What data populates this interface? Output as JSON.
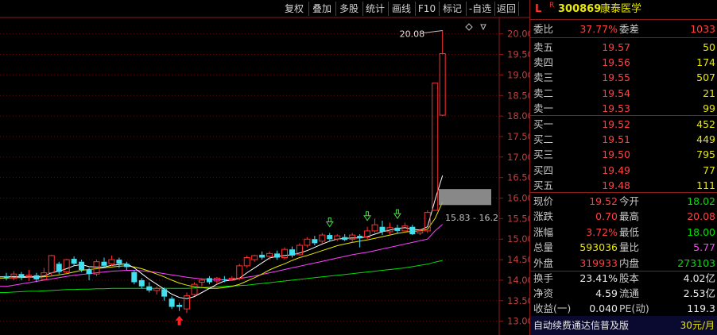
{
  "toolbar": {
    "buttons": [
      "复权",
      "叠加",
      "多股",
      "统计",
      "画线",
      "F10",
      "标记",
      "-自选",
      "返回"
    ]
  },
  "header": {
    "flag": "L",
    "sup": "R",
    "code": "300869",
    "name": "康泰医学"
  },
  "order_ratio": {
    "label1": "委比",
    "value1": "37.77%",
    "label2": "委差",
    "value2": "1033"
  },
  "asks": [
    {
      "label": "卖五",
      "price": "19.57",
      "vol": "50"
    },
    {
      "label": "卖四",
      "price": "19.56",
      "vol": "174"
    },
    {
      "label": "卖三",
      "price": "19.55",
      "vol": "507"
    },
    {
      "label": "卖二",
      "price": "19.54",
      "vol": "21"
    },
    {
      "label": "卖一",
      "price": "19.53",
      "vol": "99"
    }
  ],
  "bids": [
    {
      "label": "买一",
      "price": "19.52",
      "vol": "452"
    },
    {
      "label": "买二",
      "price": "19.51",
      "vol": "449"
    },
    {
      "label": "买三",
      "price": "19.50",
      "vol": "795"
    },
    {
      "label": "买四",
      "price": "19.49",
      "vol": "77"
    },
    {
      "label": "买五",
      "price": "19.48",
      "vol": "111"
    }
  ],
  "quote": [
    {
      "l1": "现价",
      "v1": "19.52",
      "l2": "今开",
      "v2": "18.02"
    },
    {
      "l1": "涨跌",
      "v1": "0.70",
      "l2": "最高",
      "v2": "20.08"
    },
    {
      "l1": "涨幅",
      "v1": "3.72%",
      "l2": "最低",
      "v2": "18.00"
    },
    {
      "l1": "总量",
      "v1": "593036",
      "l2": "量比",
      "v2": "5.77"
    },
    {
      "l1": "外盘",
      "v1": "319933",
      "l2": "内盘",
      "v2": "273103"
    }
  ],
  "stats": [
    {
      "l1": "换手",
      "v1": "23.41%",
      "l2": "股本",
      "v2": "4.02亿"
    },
    {
      "l1": "净资",
      "v1": "4.59",
      "l2": "流通",
      "v2": "2.53亿"
    },
    {
      "l1": "收益(一)",
      "v1": "0.040",
      "l2": "PE(动)",
      "v2": "119.3"
    }
  ],
  "footer": {
    "text": "自动续费通达信普及版",
    "price": "30元/月"
  },
  "colors": {
    "up": "#ff3030",
    "down": "#40e0f0",
    "ma5": "#ffffff",
    "ma10": "#e8e800",
    "ma20": "#ff40ff",
    "ma60": "#00e000",
    "frame": "#8a1a1a"
  },
  "chart_data": {
    "type": "candlestick",
    "ylim": [
      12.8,
      20.4
    ],
    "y_ticks": [
      "20.00",
      "19.50",
      "19.00",
      "18.50",
      "18.00",
      "17.50",
      "17.00",
      "16.50",
      "16.00",
      "15.50",
      "15.00",
      "14.50",
      "14.00",
      "13.50",
      "13.00"
    ],
    "annotations": {
      "high_label": "20.08",
      "range_label": "15.83 - 16.2"
    },
    "candles": [
      {
        "o": 14.1,
        "c": 14.05,
        "h": 14.18,
        "l": 14.0
      },
      {
        "o": 14.05,
        "c": 14.15,
        "h": 14.22,
        "l": 14.0
      },
      {
        "o": 14.15,
        "c": 14.08,
        "h": 14.2,
        "l": 14.0
      },
      {
        "o": 14.08,
        "c": 14.12,
        "h": 14.25,
        "l": 13.98
      },
      {
        "o": 14.12,
        "c": 14.02,
        "h": 14.18,
        "l": 13.95
      },
      {
        "o": 14.02,
        "c": 14.18,
        "h": 14.3,
        "l": 14.0
      },
      {
        "o": 14.18,
        "c": 14.6,
        "h": 14.62,
        "l": 14.1
      },
      {
        "o": 14.4,
        "c": 14.2,
        "h": 14.45,
        "l": 14.15
      },
      {
        "o": 14.2,
        "c": 14.5,
        "h": 14.52,
        "l": 14.15
      },
      {
        "o": 14.52,
        "c": 14.4,
        "h": 14.58,
        "l": 14.35
      },
      {
        "o": 14.45,
        "c": 14.25,
        "h": 14.5,
        "l": 14.2
      },
      {
        "o": 14.25,
        "c": 14.15,
        "h": 14.3,
        "l": 14.0
      },
      {
        "o": 14.15,
        "c": 14.45,
        "h": 14.5,
        "l": 14.1
      },
      {
        "o": 14.45,
        "c": 14.35,
        "h": 14.55,
        "l": 14.3
      },
      {
        "o": 14.4,
        "c": 14.5,
        "h": 14.6,
        "l": 14.35
      },
      {
        "o": 14.5,
        "c": 14.4,
        "h": 14.55,
        "l": 14.3
      },
      {
        "o": 14.4,
        "c": 14.32,
        "h": 14.45,
        "l": 14.25
      },
      {
        "o": 14.2,
        "c": 13.95,
        "h": 14.25,
        "l": 13.9
      },
      {
        "o": 14.0,
        "c": 13.85,
        "h": 14.05,
        "l": 13.8
      },
      {
        "o": 13.85,
        "c": 13.75,
        "h": 13.95,
        "l": 13.7
      },
      {
        "o": 13.75,
        "c": 13.8,
        "h": 13.85,
        "l": 13.65
      },
      {
        "o": 13.78,
        "c": 13.6,
        "h": 13.82,
        "l": 13.5
      },
      {
        "o": 13.55,
        "c": 13.35,
        "h": 13.6,
        "l": 13.3
      },
      {
        "o": 13.4,
        "c": 13.35,
        "h": 13.45,
        "l": 13.25
      },
      {
        "o": 13.3,
        "c": 13.62,
        "h": 13.7,
        "l": 13.2
      },
      {
        "o": 13.65,
        "c": 13.9,
        "h": 13.95,
        "l": 13.62
      },
      {
        "o": 13.95,
        "c": 14.0,
        "h": 14.05,
        "l": 13.85
      },
      {
        "o": 14.05,
        "c": 13.95,
        "h": 14.1,
        "l": 13.9
      },
      {
        "o": 13.98,
        "c": 14.05,
        "h": 14.08,
        "l": 13.9
      },
      {
        "o": 14.02,
        "c": 14.0,
        "h": 14.1,
        "l": 13.95
      },
      {
        "o": 14.0,
        "c": 14.05,
        "h": 14.1,
        "l": 13.98
      },
      {
        "o": 14.05,
        "c": 14.35,
        "h": 14.4,
        "l": 14.0
      },
      {
        "o": 14.35,
        "c": 14.55,
        "h": 14.6,
        "l": 14.3
      },
      {
        "o": 14.5,
        "c": 14.6,
        "h": 14.62,
        "l": 14.45
      },
      {
        "o": 14.62,
        "c": 14.55,
        "h": 14.7,
        "l": 14.5
      },
      {
        "o": 14.58,
        "c": 14.65,
        "h": 14.7,
        "l": 14.5
      },
      {
        "o": 14.65,
        "c": 14.55,
        "h": 14.72,
        "l": 14.5
      },
      {
        "o": 14.55,
        "c": 14.75,
        "h": 14.8,
        "l": 14.5
      },
      {
        "o": 14.75,
        "c": 14.6,
        "h": 14.82,
        "l": 14.55
      },
      {
        "o": 14.62,
        "c": 14.85,
        "h": 14.9,
        "l": 14.6
      },
      {
        "o": 14.85,
        "c": 15.0,
        "h": 15.05,
        "l": 14.8
      },
      {
        "o": 15.0,
        "c": 14.9,
        "h": 15.08,
        "l": 14.85
      },
      {
        "o": 14.95,
        "c": 15.1,
        "h": 15.15,
        "l": 14.9
      },
      {
        "o": 15.1,
        "c": 15.0,
        "h": 15.15,
        "l": 14.95
      },
      {
        "o": 15.0,
        "c": 15.08,
        "h": 15.12,
        "l": 14.95
      },
      {
        "o": 15.05,
        "c": 14.98,
        "h": 15.12,
        "l": 14.95
      },
      {
        "o": 15.0,
        "c": 15.1,
        "h": 15.15,
        "l": 14.92
      },
      {
        "o": 15.08,
        "c": 15.02,
        "h": 15.12,
        "l": 14.8
      },
      {
        "o": 15.05,
        "c": 15.2,
        "h": 15.3,
        "l": 15.0
      },
      {
        "o": 15.2,
        "c": 15.35,
        "h": 15.5,
        "l": 15.15
      },
      {
        "o": 15.3,
        "c": 15.18,
        "h": 15.45,
        "l": 15.1
      },
      {
        "o": 15.18,
        "c": 15.28,
        "h": 15.4,
        "l": 15.1
      },
      {
        "o": 15.28,
        "c": 15.2,
        "h": 15.35,
        "l": 15.15
      },
      {
        "o": 15.2,
        "c": 15.32,
        "h": 15.4,
        "l": 15.15
      },
      {
        "o": 15.3,
        "c": 15.12,
        "h": 15.35,
        "l": 15.1
      },
      {
        "o": 15.15,
        "c": 15.2,
        "h": 15.25,
        "l": 15.1
      },
      {
        "o": 15.2,
        "c": 15.65,
        "h": 15.7,
        "l": 15.15
      },
      {
        "o": 15.7,
        "c": 18.8,
        "h": 18.8,
        "l": 15.7
      },
      {
        "o": 18.02,
        "c": 19.52,
        "h": 20.08,
        "l": 18.0
      }
    ],
    "ma5": [
      14.08,
      14.09,
      14.08,
      14.09,
      14.08,
      14.1,
      14.18,
      14.22,
      14.28,
      14.35,
      14.38,
      14.33,
      14.32,
      14.32,
      14.36,
      14.38,
      14.4,
      14.3,
      14.16,
      14.02,
      13.9,
      13.78,
      13.66,
      13.58,
      13.55,
      13.6,
      13.7,
      13.8,
      13.9,
      13.98,
      14.0,
      14.05,
      14.18,
      14.3,
      14.42,
      14.54,
      14.58,
      14.6,
      14.62,
      14.66,
      14.72,
      14.8,
      14.88,
      14.95,
      15.0,
      15.02,
      15.03,
      15.03,
      15.06,
      15.12,
      15.18,
      15.22,
      15.26,
      15.28,
      15.24,
      15.22,
      15.3,
      15.95,
      16.55
    ],
    "ma10": [
      14.05,
      14.06,
      14.06,
      14.07,
      14.07,
      14.08,
      14.1,
      14.13,
      14.16,
      14.2,
      14.24,
      14.26,
      14.28,
      14.3,
      14.32,
      14.34,
      14.35,
      14.32,
      14.28,
      14.22,
      14.15,
      14.08,
      14.0,
      13.93,
      13.88,
      13.84,
      13.82,
      13.8,
      13.8,
      13.82,
      13.85,
      13.9,
      13.98,
      14.06,
      14.15,
      14.25,
      14.33,
      14.4,
      14.48,
      14.55,
      14.6,
      14.66,
      14.72,
      14.78,
      14.84,
      14.88,
      14.92,
      14.95,
      14.98,
      15.02,
      15.06,
      15.1,
      15.14,
      15.17,
      15.19,
      15.2,
      15.24,
      15.5,
      15.9
    ],
    "ma20": [
      13.85,
      13.88,
      13.91,
      13.94,
      13.97,
      14.0,
      14.03,
      14.06,
      14.09,
      14.12,
      14.14,
      14.16,
      14.18,
      14.2,
      14.22,
      14.23,
      14.24,
      14.24,
      14.23,
      14.21,
      14.19,
      14.16,
      14.13,
      14.1,
      14.07,
      14.05,
      14.03,
      14.02,
      14.01,
      14.01,
      14.02,
      14.04,
      14.07,
      14.1,
      14.14,
      14.18,
      14.22,
      14.26,
      14.3,
      14.34,
      14.38,
      14.42,
      14.46,
      14.5,
      14.54,
      14.58,
      14.62,
      14.65,
      14.68,
      14.72,
      14.76,
      14.8,
      14.84,
      14.88,
      14.92,
      14.96,
      15.0,
      15.2,
      15.36
    ],
    "ma60": [
      13.7,
      13.71,
      13.72,
      13.73,
      13.73,
      13.74,
      13.75,
      13.76,
      13.77,
      13.77,
      13.78,
      13.78,
      13.79,
      13.79,
      13.8,
      13.8,
      13.8,
      13.8,
      13.8,
      13.8,
      13.8,
      13.8,
      13.8,
      13.8,
      13.8,
      13.81,
      13.82,
      13.83,
      13.84,
      13.85,
      13.86,
      13.87,
      13.88,
      13.9,
      13.92,
      13.94,
      13.96,
      13.98,
      14.0,
      14.02,
      14.04,
      14.06,
      14.08,
      14.1,
      14.12,
      14.14,
      14.16,
      14.18,
      14.2,
      14.22,
      14.24,
      14.26,
      14.28,
      14.3,
      14.33,
      14.36,
      14.39,
      14.44,
      14.48
    ]
  }
}
